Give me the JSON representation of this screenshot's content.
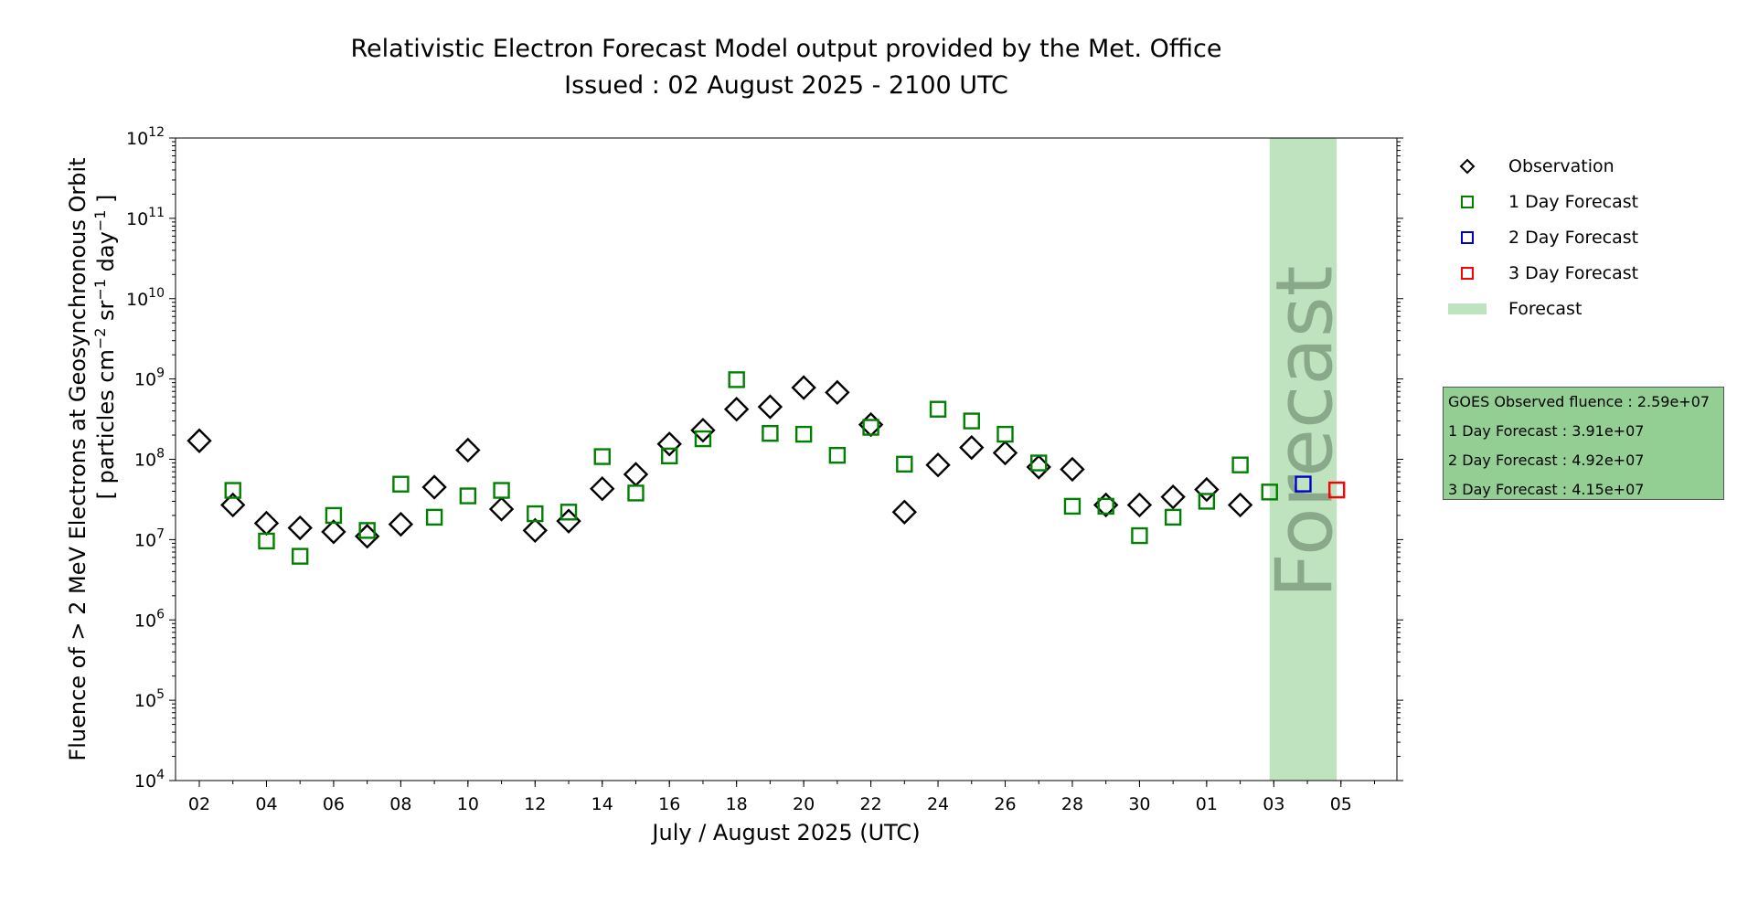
{
  "title_line1": "Relativistic Electron Forecast Model output provided by the Met. Office",
  "title_line2": "Issued : 02 August 2025 - 2100 UTC",
  "legend": {
    "observation": "Observation",
    "day1": "1 Day Forecast",
    "day2": "2 Day Forecast",
    "day3": "3 Day Forecast",
    "forecast": "Forecast"
  },
  "info_box": {
    "observed": "GOES Observed fluence : 2.59e+07",
    "day1": "1 Day Forecast : 3.91e+07",
    "day2": "2 Day Forecast : 4.92e+07",
    "day3": "3 Day Forecast : 4.15e+07"
  },
  "colors": {
    "observation": "#000000",
    "day1": "#008000",
    "day2": "#0000cc",
    "day3": "#ff0000",
    "forecast_band": "#bfe3bf",
    "info_box": "#93cf93"
  },
  "chart_data": {
    "type": "scatter",
    "title": "Relativistic Electron Forecast Model output provided by the Met. Office",
    "subtitle": "Issued : 02 August 2025 - 2100 UTC",
    "xlabel": "July / August 2025 (UTC)",
    "ylabel_line1": "Fluence of > 2 MeV Electrons at Geosynchronous Orbit",
    "ylabel_line2_parts": [
      "[ particles cm",
      "−2",
      " sr",
      "−1",
      " day",
      "−1",
      " ]"
    ],
    "y_scale": "log",
    "ylim": [
      10000.0,
      1000000000000.0
    ],
    "y_ticks": [
      {
        "value": 10000.0,
        "base": "10",
        "exp": "4"
      },
      {
        "value": 100000.0,
        "base": "10",
        "exp": "5"
      },
      {
        "value": 1000000.0,
        "base": "10",
        "exp": "6"
      },
      {
        "value": 10000000.0,
        "base": "10",
        "exp": "7"
      },
      {
        "value": 100000000.0,
        "base": "10",
        "exp": "8"
      },
      {
        "value": 1000000000.0,
        "base": "10",
        "exp": "9"
      },
      {
        "value": 10000000000.0,
        "base": "10",
        "exp": "10"
      },
      {
        "value": 100000000000.0,
        "base": "10",
        "exp": "11"
      },
      {
        "value": 1000000000000.0,
        "base": "10",
        "exp": "12"
      }
    ],
    "xlim": [
      "2025-07-01T07:00",
      "2025-08-06T16:00"
    ],
    "x_ticks": [
      {
        "date": "2025-07-02",
        "label": "02"
      },
      {
        "date": "2025-07-04",
        "label": "04"
      },
      {
        "date": "2025-07-06",
        "label": "06"
      },
      {
        "date": "2025-07-08",
        "label": "08"
      },
      {
        "date": "2025-07-10",
        "label": "10"
      },
      {
        "date": "2025-07-12",
        "label": "12"
      },
      {
        "date": "2025-07-14",
        "label": "14"
      },
      {
        "date": "2025-07-16",
        "label": "16"
      },
      {
        "date": "2025-07-18",
        "label": "18"
      },
      {
        "date": "2025-07-20",
        "label": "20"
      },
      {
        "date": "2025-07-22",
        "label": "22"
      },
      {
        "date": "2025-07-24",
        "label": "24"
      },
      {
        "date": "2025-07-26",
        "label": "26"
      },
      {
        "date": "2025-07-28",
        "label": "28"
      },
      {
        "date": "2025-07-30",
        "label": "30"
      },
      {
        "date": "2025-08-01",
        "label": "01"
      },
      {
        "date": "2025-08-03",
        "label": "03"
      },
      {
        "date": "2025-08-05",
        "label": "05"
      }
    ],
    "forecast_band": {
      "start": "2025-08-02T21:00",
      "end": "2025-08-04T21:00",
      "label": "Forecast"
    },
    "series": [
      {
        "name": "Observation",
        "marker": "diamond",
        "points": [
          {
            "x": "2025-07-02",
            "y": 170000000.0
          },
          {
            "x": "2025-07-03",
            "y": 27000000.0
          },
          {
            "x": "2025-07-04",
            "y": 16000000.0
          },
          {
            "x": "2025-07-05",
            "y": 14000000.0
          },
          {
            "x": "2025-07-06",
            "y": 12500000.0
          },
          {
            "x": "2025-07-07",
            "y": 11000000.0
          },
          {
            "x": "2025-07-08",
            "y": 15500000.0
          },
          {
            "x": "2025-07-09",
            "y": 45000000.0
          },
          {
            "x": "2025-07-10",
            "y": 130000000.0
          },
          {
            "x": "2025-07-11",
            "y": 24000000.0
          },
          {
            "x": "2025-07-12",
            "y": 13000000.0
          },
          {
            "x": "2025-07-13",
            "y": 17000000.0
          },
          {
            "x": "2025-07-14",
            "y": 43000000.0
          },
          {
            "x": "2025-07-15",
            "y": 65000000.0
          },
          {
            "x": "2025-07-16",
            "y": 155000000.0
          },
          {
            "x": "2025-07-17",
            "y": 230000000.0
          },
          {
            "x": "2025-07-18",
            "y": 420000000.0
          },
          {
            "x": "2025-07-19",
            "y": 450000000.0
          },
          {
            "x": "2025-07-20",
            "y": 780000000.0
          },
          {
            "x": "2025-07-21",
            "y": 680000000.0
          },
          {
            "x": "2025-07-22",
            "y": 270000000.0
          },
          {
            "x": "2025-07-23",
            "y": 22000000.0
          },
          {
            "x": "2025-07-24",
            "y": 85000000.0
          },
          {
            "x": "2025-07-25",
            "y": 140000000.0
          },
          {
            "x": "2025-07-26",
            "y": 120000000.0
          },
          {
            "x": "2025-07-27",
            "y": 80000000.0
          },
          {
            "x": "2025-07-28",
            "y": 75000000.0
          },
          {
            "x": "2025-07-29",
            "y": 27000000.0
          },
          {
            "x": "2025-07-30",
            "y": 27000000.0
          },
          {
            "x": "2025-07-31",
            "y": 34000000.0
          },
          {
            "x": "2025-08-01",
            "y": 42000000.0
          },
          {
            "x": "2025-08-02",
            "y": 27000000.0
          }
        ]
      },
      {
        "name": "1 Day Forecast",
        "marker": "square",
        "points": [
          {
            "x": "2025-07-03",
            "y": 41000000.0
          },
          {
            "x": "2025-07-04",
            "y": 9600000.0
          },
          {
            "x": "2025-07-05",
            "y": 6200000.0
          },
          {
            "x": "2025-07-06",
            "y": 20000000.0
          },
          {
            "x": "2025-07-07",
            "y": 13000000.0
          },
          {
            "x": "2025-07-08",
            "y": 49000000.0
          },
          {
            "x": "2025-07-09",
            "y": 19000000.0
          },
          {
            "x": "2025-07-10",
            "y": 35000000.0
          },
          {
            "x": "2025-07-11",
            "y": 41000000.0
          },
          {
            "x": "2025-07-12",
            "y": 21000000.0
          },
          {
            "x": "2025-07-13",
            "y": 22000000.0
          },
          {
            "x": "2025-07-14",
            "y": 108000000.0
          },
          {
            "x": "2025-07-15",
            "y": 38000000.0
          },
          {
            "x": "2025-07-16",
            "y": 110000000.0
          },
          {
            "x": "2025-07-17",
            "y": 180000000.0
          },
          {
            "x": "2025-07-18",
            "y": 980000000.0
          },
          {
            "x": "2025-07-19",
            "y": 210000000.0
          },
          {
            "x": "2025-07-20",
            "y": 205000000.0
          },
          {
            "x": "2025-07-21",
            "y": 112000000.0
          },
          {
            "x": "2025-07-22",
            "y": 250000000.0
          },
          {
            "x": "2025-07-23",
            "y": 87000000.0
          },
          {
            "x": "2025-07-24",
            "y": 420000000.0
          },
          {
            "x": "2025-07-25",
            "y": 300000000.0
          },
          {
            "x": "2025-07-26",
            "y": 205000000.0
          },
          {
            "x": "2025-07-27",
            "y": 90000000.0
          },
          {
            "x": "2025-07-28",
            "y": 26000000.0
          },
          {
            "x": "2025-07-29",
            "y": 26000000.0
          },
          {
            "x": "2025-07-30",
            "y": 11200000.0
          },
          {
            "x": "2025-07-31",
            "y": 19000000.0
          },
          {
            "x": "2025-08-01",
            "y": 30000000.0
          },
          {
            "x": "2025-08-02",
            "y": 85000000.0
          },
          {
            "x": "2025-08-02T21:00",
            "y": 39100000.0
          }
        ]
      },
      {
        "name": "2 Day Forecast",
        "marker": "square",
        "points": [
          {
            "x": "2025-08-03T21:00",
            "y": 49200000.0
          }
        ]
      },
      {
        "name": "3 Day Forecast",
        "marker": "square",
        "points": [
          {
            "x": "2025-08-04T21:00",
            "y": 41500000.0
          }
        ]
      }
    ]
  }
}
